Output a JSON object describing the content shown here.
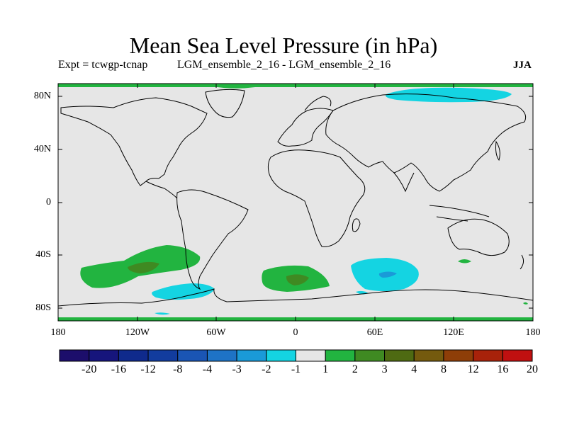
{
  "title": "Mean Sea Level Pressure (in hPa)",
  "subtitle": {
    "experiment": "Expt = tcwgp-tcnap",
    "comparison": "LGM_ensemble_2_16 - LGM_ensemble_2_16",
    "season": "JJA"
  },
  "axes": {
    "latitude_labels": [
      "80N",
      "40N",
      "0",
      "40S",
      "80S"
    ],
    "longitude_labels": [
      "180",
      "120W",
      "60W",
      "0",
      "60E",
      "120E",
      "180"
    ]
  },
  "colorbar": {
    "labels": [
      "-20",
      "-16",
      "-12",
      "-8",
      "-4",
      "-3",
      "-2",
      "-1",
      "1",
      "2",
      "3",
      "4",
      "8",
      "12",
      "16",
      "20"
    ],
    "colors": [
      "#1c0e6b",
      "#16157c",
      "#0f2a8c",
      "#123c9e",
      "#1a55b4",
      "#1e73c6",
      "#1a9ad8",
      "#14d4e2",
      "#e6e6e6",
      "#22b440",
      "#3f8a22",
      "#4e6a12",
      "#745a0e",
      "#8e3e08",
      "#a8220a",
      "#c01010"
    ]
  },
  "map_colors": {
    "background": "#e6e6e6",
    "positive_1": "#22b440",
    "positive_2": "#3f8a22",
    "negative_1": "#14d4e2",
    "negative_2": "#1a9ad8",
    "coast": "#000000"
  }
}
